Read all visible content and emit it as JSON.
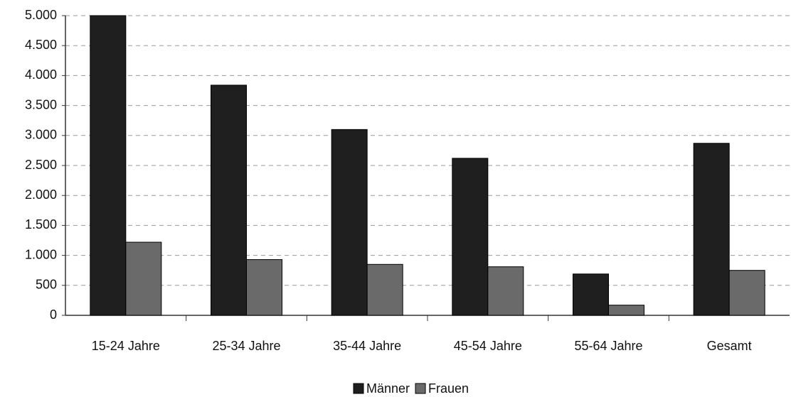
{
  "chart_data": {
    "type": "bar",
    "categories": [
      "15-24 Jahre",
      "25-34 Jahre",
      "35-44 Jahre",
      "45-54 Jahre",
      "55-64 Jahre",
      "Gesamt"
    ],
    "series": [
      {
        "name": "Männer",
        "color": "#1f1f1f",
        "values": [
          5000,
          3840,
          3100,
          2620,
          690,
          2870
        ]
      },
      {
        "name": "Frauen",
        "color": "#6a6a6a",
        "values": [
          1220,
          930,
          850,
          810,
          170,
          750
        ]
      }
    ],
    "ylim": [
      0,
      5000
    ],
    "yticks": [
      0,
      500,
      {
        "value": 1000,
        "label": "1.000"
      },
      {
        "value": 1500,
        "label": "1.500"
      },
      {
        "value": 2000,
        "label": "2.000"
      },
      {
        "value": 2500,
        "label": "2.500"
      },
      {
        "value": 3000,
        "label": "3.000"
      },
      {
        "value": 3500,
        "label": "3.500"
      },
      {
        "value": 4000,
        "label": "4.000"
      },
      {
        "value": 4500,
        "label": "4.500"
      },
      {
        "value": 5000,
        "label": "5.000"
      }
    ],
    "grid": true,
    "legend": "bottom"
  }
}
